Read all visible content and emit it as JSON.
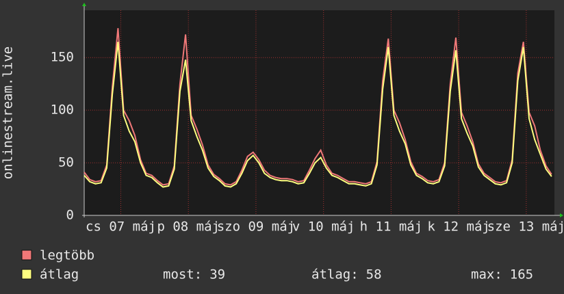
{
  "chart_data": {
    "type": "line",
    "y_label": "onlinestream.live",
    "x": [
      0,
      2,
      4,
      6,
      8,
      10,
      12,
      14,
      16,
      18,
      20,
      22,
      24,
      26,
      28,
      30,
      32,
      34,
      36,
      38,
      40,
      42,
      44,
      46,
      48,
      50,
      52,
      54,
      56,
      58,
      60,
      62,
      64,
      66,
      68,
      70,
      72,
      74,
      76,
      78,
      80,
      82,
      84,
      86,
      88,
      90,
      92,
      94,
      96,
      98,
      100,
      102,
      104,
      106,
      108,
      110,
      112,
      114,
      116,
      118,
      120,
      122,
      124,
      126,
      128,
      130,
      132,
      134,
      136,
      138,
      140,
      142,
      144,
      146,
      148,
      150,
      152,
      154,
      156,
      158,
      160,
      162,
      164,
      166
    ],
    "xlim": [
      0,
      167
    ],
    "xticks": [
      {
        "value": 13,
        "label": "cs 07 máj"
      },
      {
        "value": 37,
        "label": "p 08 máj"
      },
      {
        "value": 61,
        "label": "szo 09 máj"
      },
      {
        "value": 85,
        "label": "v 10 máj"
      },
      {
        "value": 109,
        "label": "h 11 máj"
      },
      {
        "value": 133,
        "label": "k 12 máj"
      },
      {
        "value": 157,
        "label": "sze 13 máj"
      }
    ],
    "ylim": [
      0,
      195
    ],
    "yticks": [
      0,
      50,
      100,
      150
    ],
    "grid": true,
    "series": [
      {
        "name": "legtöbb",
        "color": "#f07878",
        "values": [
          41,
          34,
          32,
          33,
          48,
          122,
          178,
          100,
          90,
          76,
          53,
          40,
          38,
          33,
          29,
          30,
          47,
          125,
          172,
          95,
          82,
          67,
          48,
          39,
          35,
          30,
          29,
          32,
          43,
          56,
          60,
          53,
          43,
          38,
          36,
          35,
          35,
          34,
          32,
          33,
          43,
          54,
          62,
          48,
          40,
          38,
          35,
          32,
          32,
          31,
          30,
          32,
          51,
          128,
          168,
          100,
          88,
          72,
          51,
          40,
          37,
          33,
          32,
          34,
          50,
          125,
          169,
          98,
          85,
          70,
          49,
          40,
          36,
          32,
          31,
          33,
          53,
          135,
          165,
          98,
          85,
          62,
          47,
          39
        ]
      },
      {
        "name": "átlag",
        "color": "#ffff80",
        "values": [
          38,
          32,
          30,
          31,
          45,
          115,
          165,
          95,
          80,
          70,
          50,
          38,
          36,
          31,
          27,
          28,
          44,
          118,
          148,
          90,
          75,
          62,
          45,
          37,
          33,
          28,
          27,
          30,
          40,
          52,
          57,
          50,
          40,
          36,
          34,
          33,
          33,
          32,
          30,
          31,
          40,
          50,
          55,
          45,
          38,
          36,
          33,
          30,
          30,
          29,
          28,
          30,
          48,
          120,
          160,
          95,
          80,
          68,
          48,
          38,
          35,
          31,
          30,
          32,
          47,
          118,
          157,
          92,
          78,
          66,
          46,
          38,
          34,
          30,
          29,
          31,
          50,
          128,
          160,
          92,
          72,
          58,
          44,
          37
        ]
      }
    ],
    "stats": [
      {
        "label": "most:",
        "value": 39
      },
      {
        "label": "átlag:",
        "value": 58
      },
      {
        "label": "max:",
        "value": 165
      }
    ]
  }
}
